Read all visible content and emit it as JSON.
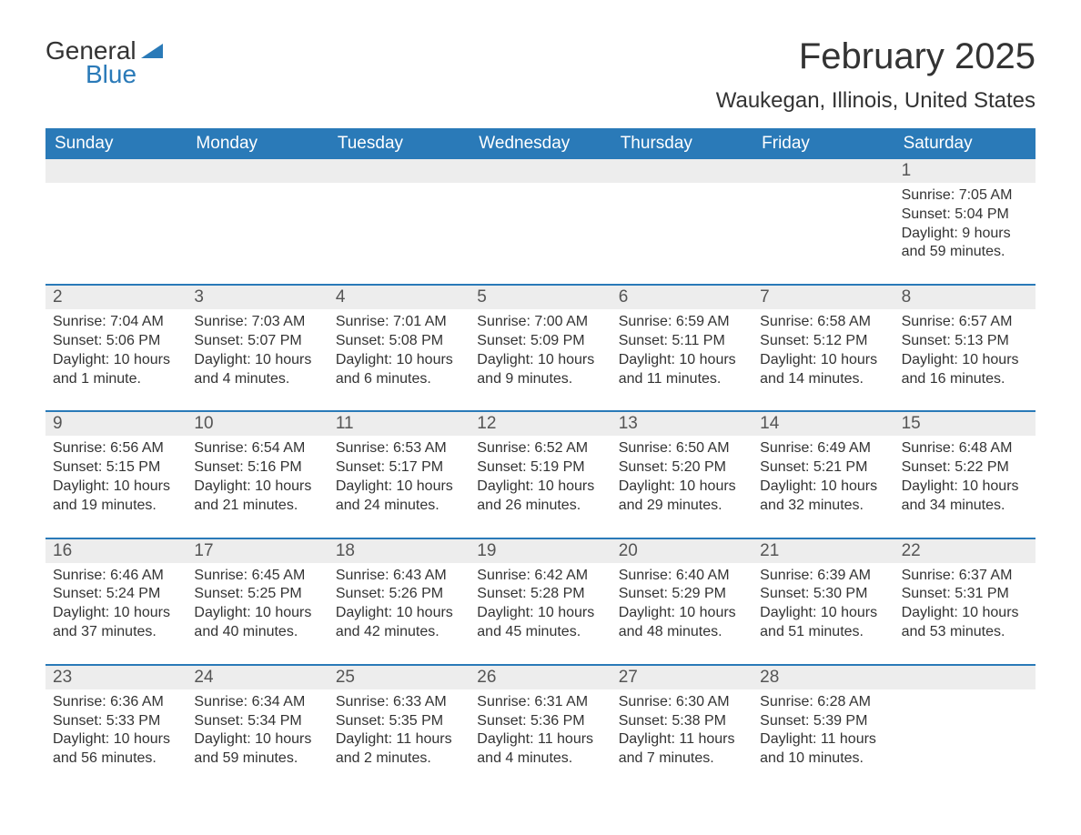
{
  "logo": {
    "general": "General",
    "blue": "Blue"
  },
  "title": "February 2025",
  "location": "Waukegan, Illinois, United States",
  "colors": {
    "brand_blue": "#2a7ab8",
    "header_text": "#ffffff",
    "daynum_bg": "#ededed",
    "text_dark": "#333333",
    "text_mid": "#555555",
    "background": "#ffffff"
  },
  "weekdays": [
    "Sunday",
    "Monday",
    "Tuesday",
    "Wednesday",
    "Thursday",
    "Friday",
    "Saturday"
  ],
  "weeks": [
    [
      {
        "day": "",
        "lines": []
      },
      {
        "day": "",
        "lines": []
      },
      {
        "day": "",
        "lines": []
      },
      {
        "day": "",
        "lines": []
      },
      {
        "day": "",
        "lines": []
      },
      {
        "day": "",
        "lines": []
      },
      {
        "day": "1",
        "lines": [
          "Sunrise: 7:05 AM",
          "Sunset: 5:04 PM",
          "Daylight: 9 hours and 59 minutes."
        ]
      }
    ],
    [
      {
        "day": "2",
        "lines": [
          "Sunrise: 7:04 AM",
          "Sunset: 5:06 PM",
          "Daylight: 10 hours and 1 minute."
        ]
      },
      {
        "day": "3",
        "lines": [
          "Sunrise: 7:03 AM",
          "Sunset: 5:07 PM",
          "Daylight: 10 hours and 4 minutes."
        ]
      },
      {
        "day": "4",
        "lines": [
          "Sunrise: 7:01 AM",
          "Sunset: 5:08 PM",
          "Daylight: 10 hours and 6 minutes."
        ]
      },
      {
        "day": "5",
        "lines": [
          "Sunrise: 7:00 AM",
          "Sunset: 5:09 PM",
          "Daylight: 10 hours and 9 minutes."
        ]
      },
      {
        "day": "6",
        "lines": [
          "Sunrise: 6:59 AM",
          "Sunset: 5:11 PM",
          "Daylight: 10 hours and 11 minutes."
        ]
      },
      {
        "day": "7",
        "lines": [
          "Sunrise: 6:58 AM",
          "Sunset: 5:12 PM",
          "Daylight: 10 hours and 14 minutes."
        ]
      },
      {
        "day": "8",
        "lines": [
          "Sunrise: 6:57 AM",
          "Sunset: 5:13 PM",
          "Daylight: 10 hours and 16 minutes."
        ]
      }
    ],
    [
      {
        "day": "9",
        "lines": [
          "Sunrise: 6:56 AM",
          "Sunset: 5:15 PM",
          "Daylight: 10 hours and 19 minutes."
        ]
      },
      {
        "day": "10",
        "lines": [
          "Sunrise: 6:54 AM",
          "Sunset: 5:16 PM",
          "Daylight: 10 hours and 21 minutes."
        ]
      },
      {
        "day": "11",
        "lines": [
          "Sunrise: 6:53 AM",
          "Sunset: 5:17 PM",
          "Daylight: 10 hours and 24 minutes."
        ]
      },
      {
        "day": "12",
        "lines": [
          "Sunrise: 6:52 AM",
          "Sunset: 5:19 PM",
          "Daylight: 10 hours and 26 minutes."
        ]
      },
      {
        "day": "13",
        "lines": [
          "Sunrise: 6:50 AM",
          "Sunset: 5:20 PM",
          "Daylight: 10 hours and 29 minutes."
        ]
      },
      {
        "day": "14",
        "lines": [
          "Sunrise: 6:49 AM",
          "Sunset: 5:21 PM",
          "Daylight: 10 hours and 32 minutes."
        ]
      },
      {
        "day": "15",
        "lines": [
          "Sunrise: 6:48 AM",
          "Sunset: 5:22 PM",
          "Daylight: 10 hours and 34 minutes."
        ]
      }
    ],
    [
      {
        "day": "16",
        "lines": [
          "Sunrise: 6:46 AM",
          "Sunset: 5:24 PM",
          "Daylight: 10 hours and 37 minutes."
        ]
      },
      {
        "day": "17",
        "lines": [
          "Sunrise: 6:45 AM",
          "Sunset: 5:25 PM",
          "Daylight: 10 hours and 40 minutes."
        ]
      },
      {
        "day": "18",
        "lines": [
          "Sunrise: 6:43 AM",
          "Sunset: 5:26 PM",
          "Daylight: 10 hours and 42 minutes."
        ]
      },
      {
        "day": "19",
        "lines": [
          "Sunrise: 6:42 AM",
          "Sunset: 5:28 PM",
          "Daylight: 10 hours and 45 minutes."
        ]
      },
      {
        "day": "20",
        "lines": [
          "Sunrise: 6:40 AM",
          "Sunset: 5:29 PM",
          "Daylight: 10 hours and 48 minutes."
        ]
      },
      {
        "day": "21",
        "lines": [
          "Sunrise: 6:39 AM",
          "Sunset: 5:30 PM",
          "Daylight: 10 hours and 51 minutes."
        ]
      },
      {
        "day": "22",
        "lines": [
          "Sunrise: 6:37 AM",
          "Sunset: 5:31 PM",
          "Daylight: 10 hours and 53 minutes."
        ]
      }
    ],
    [
      {
        "day": "23",
        "lines": [
          "Sunrise: 6:36 AM",
          "Sunset: 5:33 PM",
          "Daylight: 10 hours and 56 minutes."
        ]
      },
      {
        "day": "24",
        "lines": [
          "Sunrise: 6:34 AM",
          "Sunset: 5:34 PM",
          "Daylight: 10 hours and 59 minutes."
        ]
      },
      {
        "day": "25",
        "lines": [
          "Sunrise: 6:33 AM",
          "Sunset: 5:35 PM",
          "Daylight: 11 hours and 2 minutes."
        ]
      },
      {
        "day": "26",
        "lines": [
          "Sunrise: 6:31 AM",
          "Sunset: 5:36 PM",
          "Daylight: 11 hours and 4 minutes."
        ]
      },
      {
        "day": "27",
        "lines": [
          "Sunrise: 6:30 AM",
          "Sunset: 5:38 PM",
          "Daylight: 11 hours and 7 minutes."
        ]
      },
      {
        "day": "28",
        "lines": [
          "Sunrise: 6:28 AM",
          "Sunset: 5:39 PM",
          "Daylight: 11 hours and 10 minutes."
        ]
      },
      {
        "day": "",
        "lines": []
      }
    ]
  ]
}
